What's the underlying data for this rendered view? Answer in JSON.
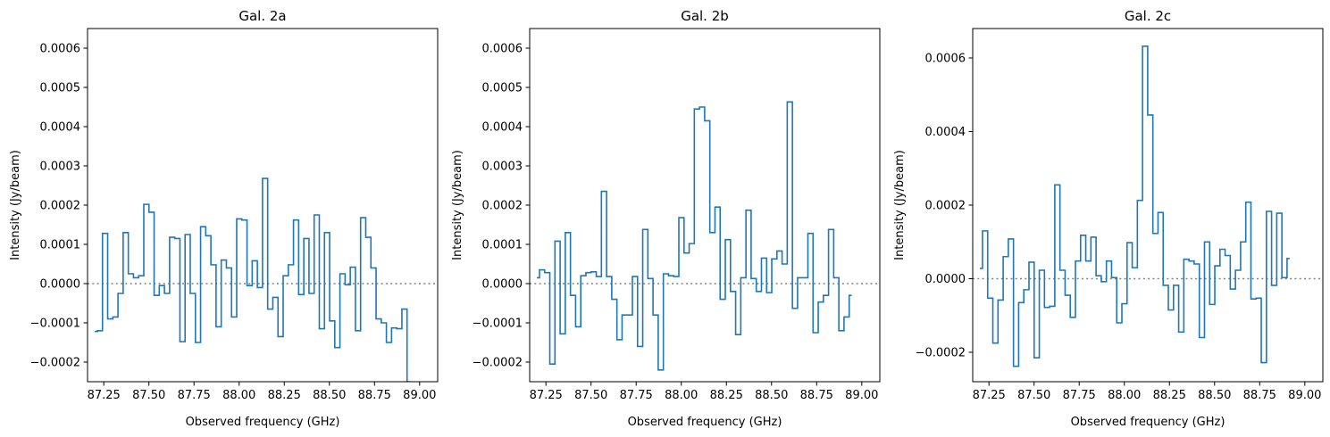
{
  "figure": {
    "line_color": "#1f77b4",
    "zero_line_color": "#808080"
  },
  "chart_data": [
    {
      "type": "line",
      "style": "steps-mid",
      "title": "Gal. 2a",
      "xlabel": "Observed frequency (GHz)",
      "ylabel": "Intensity (Jy/beam)",
      "xlim": [
        87.16,
        89.1
      ],
      "ylim": [
        -0.00025,
        0.00065
      ],
      "xticks": [
        87.25,
        87.5,
        87.75,
        88.0,
        88.25,
        88.5,
        88.75,
        89.0
      ],
      "xtick_labels": [
        "87.25",
        "87.50",
        "87.75",
        "88.00",
        "88.25",
        "88.50",
        "88.75",
        "89.00"
      ],
      "yticks": [
        -0.0002,
        -0.0001,
        0.0,
        0.0001,
        0.0002,
        0.0003,
        0.0004,
        0.0005,
        0.0006
      ],
      "ytick_labels": [
        "−0.0002",
        "−0.0001",
        "0.0000",
        "0.0001",
        "0.0002",
        "0.0003",
        "0.0004",
        "0.0005",
        "0.0006"
      ],
      "zero_line": true,
      "grid": false,
      "series": [
        {
          "x_start": 87.2,
          "x_step": 0.0286,
          "values": [
            -0.000122,
            -0.00012,
            0.000128,
            -9e-05,
            -8.5e-05,
            -2.5e-05,
            0.00013,
            2.5e-05,
            1.5e-05,
            2e-05,
            0.000202,
            0.000182,
            -3e-05,
            -5e-06,
            -2.5e-05,
            0.000118,
            0.000115,
            -0.000148,
            0.000125,
            -2.5e-05,
            -0.00015,
            0.000145,
            0.000122,
            4.8e-05,
            -0.00011,
            6e-05,
            4e-05,
            -8.5e-05,
            0.000165,
            0.000162,
            -5e-06,
            5.8e-05,
            -1e-05,
            0.000268,
            -6.5e-05,
            -3.5e-05,
            -0.000135,
            2e-05,
            4.8e-05,
            0.000162,
            -2.8e-05,
            0.000115,
            -2.5e-05,
            0.000175,
            -0.000115,
            0.00013,
            -9.5e-05,
            -0.000163,
            2.5e-05,
            -3e-06,
            4.2e-05,
            -0.00012,
            0.000168,
            0.000118,
            4e-05,
            -9e-05,
            -0.0001,
            -0.00015,
            -0.000113,
            -0.000115,
            -6.5e-05,
            -0.00025
          ]
        }
      ]
    },
    {
      "type": "line",
      "style": "steps-mid",
      "title": "Gal. 2b",
      "xlabel": "Observed frequency (GHz)",
      "ylabel": "Intensity (Jy/beam)",
      "xlim": [
        87.16,
        89.1
      ],
      "ylim": [
        -0.00025,
        0.00065
      ],
      "xticks": [
        87.25,
        87.5,
        87.75,
        88.0,
        88.25,
        88.5,
        88.75,
        89.0
      ],
      "xtick_labels": [
        "87.25",
        "87.50",
        "87.75",
        "88.00",
        "88.25",
        "88.50",
        "88.75",
        "89.00"
      ],
      "yticks": [
        -0.0002,
        -0.0001,
        0.0,
        0.0001,
        0.0002,
        0.0003,
        0.0004,
        0.0005,
        0.0006
      ],
      "ytick_labels": [
        "−0.0002",
        "−0.0001",
        "0.0000",
        "0.0001",
        "0.0002",
        "0.0003",
        "0.0004",
        "0.0005",
        "0.0006"
      ],
      "zero_line": true,
      "grid": false,
      "series": [
        {
          "x_start": 87.2,
          "x_step": 0.0286,
          "values": [
            1.5e-05,
            3.5e-05,
            2.8e-05,
            -0.000205,
            0.000108,
            -0.000128,
            0.00013,
            -3e-05,
            -0.00011,
            2e-05,
            2.8e-05,
            3e-05,
            1.8e-05,
            0.000235,
            1.8e-05,
            -4e-05,
            -0.000143,
            -8e-05,
            -8e-05,
            1.8e-05,
            -0.00016,
            0.000138,
            1.3e-05,
            -8e-05,
            -0.00022,
            2.5e-05,
            2e-05,
            1.8e-05,
            0.000168,
            7.8e-05,
            0.000102,
            0.000445,
            0.00045,
            0.000415,
            0.00013,
            0.000195,
            -4e-05,
            0.000112,
            -2e-05,
            -0.00013,
            1.5e-05,
            0.000187,
            1.3e-05,
            -2e-05,
            6.5e-05,
            -2.3e-05,
            6.3e-05,
            8.3e-05,
            5e-05,
            0.000463,
            -6.3e-05,
            1.5e-05,
            1.5e-05,
            0.000128,
            -0.000125,
            -4.7e-05,
            -3e-05,
            0.000138,
            1.5e-05,
            -0.00012,
            -8.5e-05,
            -3e-05
          ]
        }
      ]
    },
    {
      "type": "line",
      "style": "steps-mid",
      "title": "Gal. 2c",
      "xlabel": "Observed frequency (GHz)",
      "ylabel": "Intensity (Jy/beam)",
      "xlim": [
        87.16,
        89.1
      ],
      "ylim": [
        -0.00028,
        0.00068
      ],
      "xticks": [
        87.25,
        87.5,
        87.75,
        88.0,
        88.25,
        88.5,
        88.75,
        89.0
      ],
      "xtick_labels": [
        "87.25",
        "87.50",
        "87.75",
        "88.00",
        "88.25",
        "88.50",
        "88.75",
        "89.00"
      ],
      "yticks": [
        -0.0002,
        0.0,
        0.0002,
        0.0004,
        0.0006
      ],
      "ytick_labels": [
        "−0.0002",
        "0.0000",
        "0.0002",
        "0.0004",
        "0.0006"
      ],
      "zero_line": true,
      "grid": false,
      "series": [
        {
          "x_start": 87.2,
          "x_step": 0.0286,
          "values": [
            2.8e-05,
            0.00013,
            -5.3e-05,
            -0.000175,
            -5.8e-05,
            6e-05,
            0.000108,
            -0.000238,
            -6.5e-05,
            -3e-05,
            4.5e-05,
            -0.000215,
            2.3e-05,
            -7.8e-05,
            -7.5e-05,
            0.000255,
            2.3e-05,
            -4.5e-05,
            -0.000105,
            4.8e-05,
            0.000118,
            4.8e-05,
            0.000113,
            8e-06,
            -8e-06,
            4.8e-05,
            3e-06,
            -0.00012,
            -6.8e-05,
            9.8e-05,
            3e-05,
            0.000213,
            0.000632,
            0.000445,
            0.000123,
            0.00018,
            -1.8e-05,
            -8.5e-05,
            -1.8e-05,
            -0.000145,
            5.3e-05,
            4.8e-05,
            4e-05,
            -0.00016,
            0.0001,
            -7e-05,
            3.5e-05,
            8e-05,
            6.3e-05,
            -2.8e-05,
            2.3e-05,
            0.0001,
            0.000208,
            -5.5e-05,
            -5.3e-05,
            -0.000228,
            0.000183,
            -1.8e-05,
            0.000178,
            3e-06,
            5.5e-05
          ]
        }
      ]
    }
  ]
}
